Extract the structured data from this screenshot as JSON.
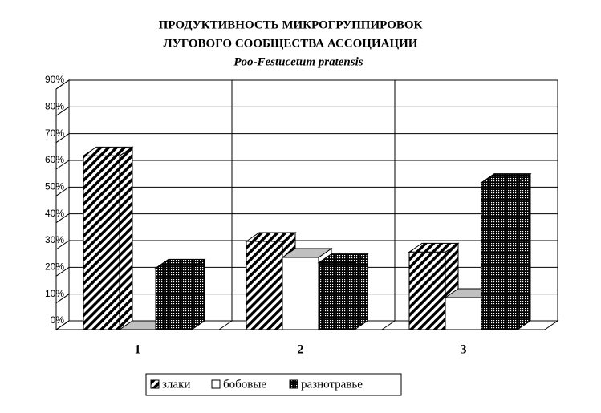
{
  "chart_data": {
    "type": "bar3d",
    "title": [
      "ПРОДУКТИВНОСТЬ МИКРОГРУППИРОВОК",
      "ЛУГОВОГО СООБЩЕСТВА АССОЦИАЦИИ"
    ],
    "subtitle": "Poo-Festucetum pratensis",
    "categories": [
      "1",
      "2",
      "3"
    ],
    "series": [
      {
        "name": "злаки",
        "color": "#000000",
        "pattern": "hatch",
        "values": [
          65,
          33,
          29
        ]
      },
      {
        "name": "бобовые",
        "color": "#ffffff",
        "pattern": "solid",
        "values": [
          0,
          27,
          12
        ]
      },
      {
        "name": "разнотравье",
        "color": "#000000",
        "pattern": "dots",
        "values": [
          23,
          25,
          55
        ]
      }
    ],
    "ylim": [
      0,
      90
    ],
    "yticks": [
      {
        "value": 0,
        "label": "0%"
      },
      {
        "value": 10,
        "label": "10%"
      },
      {
        "value": 20,
        "label": "20%"
      },
      {
        "value": 30,
        "label": "30%"
      },
      {
        "value": 40,
        "label": "40%"
      },
      {
        "value": 50,
        "label": "50%"
      },
      {
        "value": 60,
        "label": "60%"
      },
      {
        "value": 70,
        "label": "70%"
      },
      {
        "value": 80,
        "label": "80%"
      },
      {
        "value": 90,
        "label": "90%"
      }
    ],
    "grid": true,
    "legend": "bottom"
  }
}
